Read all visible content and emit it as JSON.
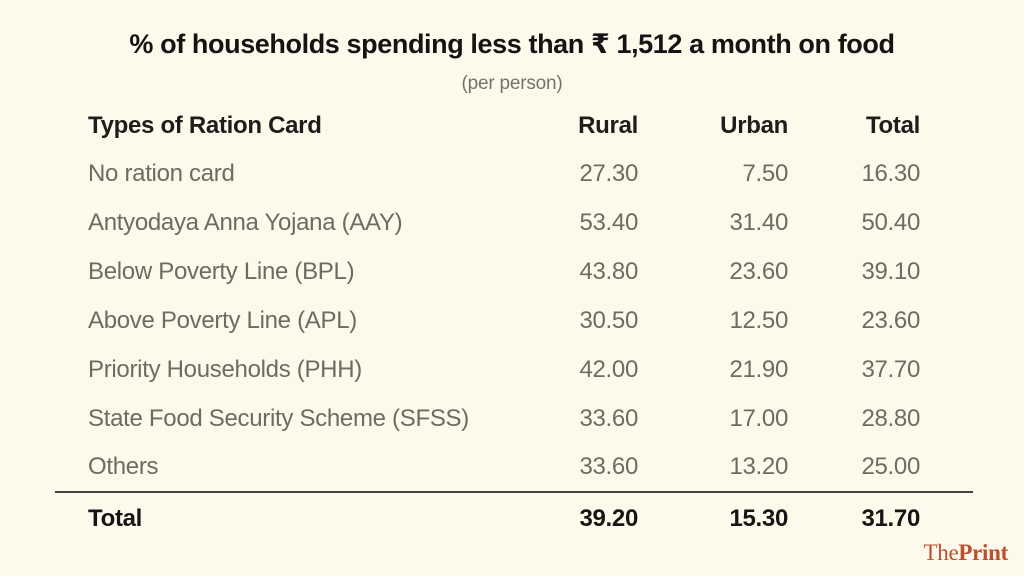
{
  "page": {
    "background_color": "#fdfaeb",
    "title": "% of households spending less than ₹ 1,512 a month on food",
    "subtitle": "(per person)",
    "brand": {
      "part1": "The",
      "part2": "Print",
      "color": "#bf4d32"
    }
  },
  "table": {
    "headers": {
      "label": "Types of Ration Card",
      "rural": "Rural",
      "urban": "Urban",
      "total": "Total"
    },
    "rows": [
      {
        "label": "No ration card",
        "rural": "27.30",
        "urban": "7.50",
        "total": "16.30"
      },
      {
        "label": "Antyodaya Anna Yojana (AAY)",
        "rural": "53.40",
        "urban": "31.40",
        "total": "50.40"
      },
      {
        "label": "Below Poverty Line (BPL)",
        "rural": "43.80",
        "urban": "23.60",
        "total": "39.10"
      },
      {
        "label": "Above Poverty Line (APL)",
        "rural": "30.50",
        "urban": "12.50",
        "total": "23.60"
      },
      {
        "label": "Priority Households (PHH)",
        "rural": "42.00",
        "urban": "21.90",
        "total": "37.70"
      },
      {
        "label": "State Food Security Scheme (SFSS)",
        "rural": "33.60",
        "urban": "17.00",
        "total": "28.80"
      },
      {
        "label": "Others",
        "rural": "33.60",
        "urban": "13.20",
        "total": "25.00"
      }
    ],
    "total_row": {
      "label": "Total",
      "rural": "39.20",
      "urban": "15.30",
      "total": "31.70"
    }
  },
  "chart_data": {
    "type": "table",
    "title": "% of households spending less than ₹ 1,512 a month on food",
    "subtitle": "(per person)",
    "columns": [
      "Types of Ration Card",
      "Rural",
      "Urban",
      "Total"
    ],
    "rows": [
      [
        "No ration card",
        27.3,
        7.5,
        16.3
      ],
      [
        "Antyodaya Anna Yojana (AAY)",
        53.4,
        31.4,
        50.4
      ],
      [
        "Below Poverty Line (BPL)",
        43.8,
        23.6,
        39.1
      ],
      [
        "Above Poverty Line (APL)",
        30.5,
        12.5,
        23.6
      ],
      [
        "Priority Households (PHH)",
        42.0,
        21.9,
        37.7
      ],
      [
        "State Food Security Scheme (SFSS)",
        33.6,
        17.0,
        28.8
      ],
      [
        "Others",
        33.6,
        13.2,
        25.0
      ]
    ],
    "summary_row": [
      "Total",
      39.2,
      15.3,
      31.7
    ],
    "units": "percent of households",
    "branding": "ThePrint"
  }
}
